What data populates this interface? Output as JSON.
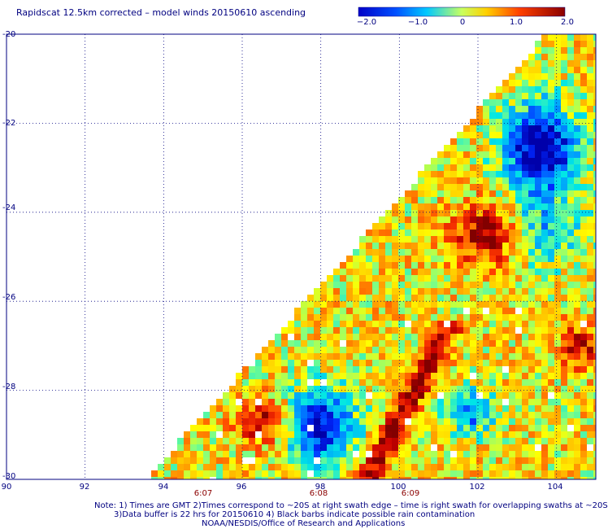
{
  "title": "Rapidscat 12.5km corrected – model winds 20150610 ascending",
  "colorbar": {
    "labels": [
      "−2.0",
      "−1.0",
      "0",
      "1.0",
      "2.0"
    ],
    "values": [
      -2.0,
      -1.0,
      0,
      1.0,
      2.0
    ],
    "colors": [
      "#0000c8",
      "#0060ff",
      "#00e0ff",
      "#ffff00",
      "#ff9000",
      "#ff2000",
      "#8b0000"
    ]
  },
  "axes": {
    "x_ticks": [
      "90",
      "92",
      "94",
      "96",
      "98",
      "100",
      "102",
      "104"
    ],
    "y_ticks": [
      "-20",
      "-22",
      "-24",
      "-26",
      "-28",
      "-30"
    ],
    "xlim": [
      90,
      105
    ],
    "ylim": [
      -30,
      -20
    ],
    "grid": true
  },
  "time_labels": [
    {
      "lon": 95,
      "text": "6:07"
    },
    {
      "lon": 98,
      "text": "6:08"
    },
    {
      "lon": 100.5,
      "text": "6:09"
    }
  ],
  "notes": [
    "Note: 1) Times are GMT 2)Times correspond to ~20S at right swath edge – time is right swath for overlapping swaths at ~20S",
    "3)Data buffer is 22 hrs for 20150610 4) Black barbs indicate possible rain contamination",
    "NOAA/NESDIS/Office of Research and Applications"
  ]
}
